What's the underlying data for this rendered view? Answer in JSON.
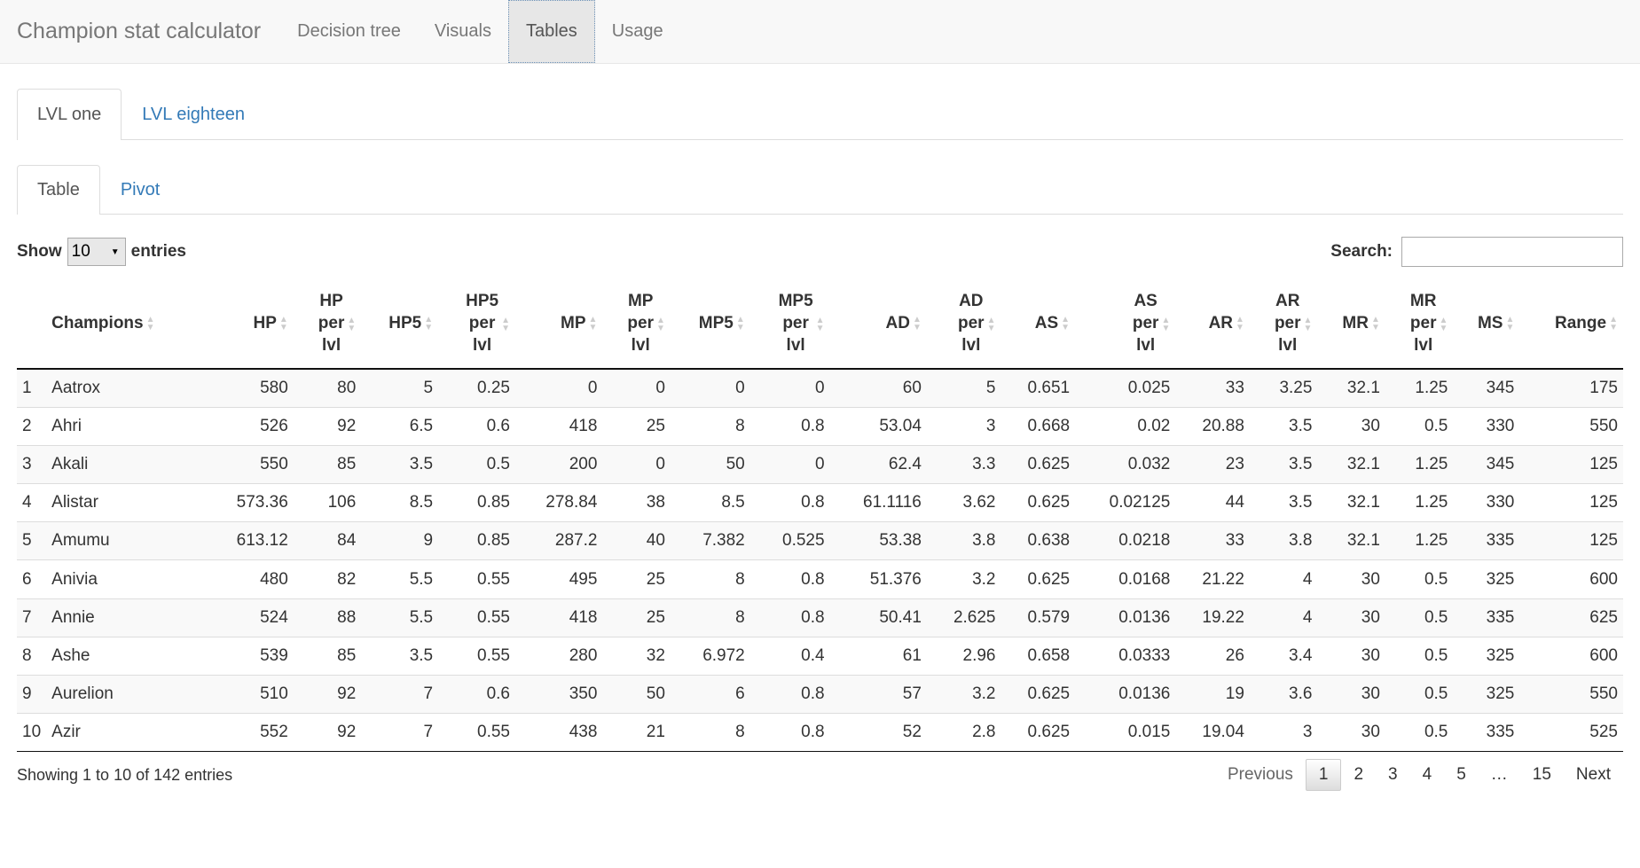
{
  "navbar": {
    "brand": "Champion stat calculator",
    "items": [
      "Decision tree",
      "Visuals",
      "Tables",
      "Usage"
    ],
    "active": "Tables"
  },
  "level_tabs": [
    "LVL one",
    "LVL eighteen"
  ],
  "view_tabs": [
    "Table",
    "Pivot"
  ],
  "controls": {
    "show_label": "Show",
    "entries_value": "10",
    "entries_label": "entries",
    "search_label": "Search:",
    "search_value": ""
  },
  "table": {
    "columns": [
      [
        "Champions"
      ],
      [
        "HP"
      ],
      [
        "HP",
        "per",
        "lvl"
      ],
      [
        "HP5"
      ],
      [
        "HP5",
        "per",
        "lvl"
      ],
      [
        "MP"
      ],
      [
        "MP",
        "per",
        "lvl"
      ],
      [
        "MP5"
      ],
      [
        "MP5",
        "per",
        "lvl"
      ],
      [
        "AD"
      ],
      [
        "AD",
        "per",
        "lvl"
      ],
      [
        "AS"
      ],
      [
        "AS",
        "per",
        "lvl"
      ],
      [
        "AR"
      ],
      [
        "AR",
        "per",
        "lvl"
      ],
      [
        "MR"
      ],
      [
        "MR",
        "per",
        "lvl"
      ],
      [
        "MS"
      ],
      [
        "Range"
      ]
    ],
    "rows": [
      [
        "1",
        "Aatrox",
        "580",
        "80",
        "5",
        "0.25",
        "0",
        "0",
        "0",
        "0",
        "60",
        "5",
        "0.651",
        "0.025",
        "33",
        "3.25",
        "32.1",
        "1.25",
        "345",
        "175"
      ],
      [
        "2",
        "Ahri",
        "526",
        "92",
        "6.5",
        "0.6",
        "418",
        "25",
        "8",
        "0.8",
        "53.04",
        "3",
        "0.668",
        "0.02",
        "20.88",
        "3.5",
        "30",
        "0.5",
        "330",
        "550"
      ],
      [
        "3",
        "Akali",
        "550",
        "85",
        "3.5",
        "0.5",
        "200",
        "0",
        "50",
        "0",
        "62.4",
        "3.3",
        "0.625",
        "0.032",
        "23",
        "3.5",
        "32.1",
        "1.25",
        "345",
        "125"
      ],
      [
        "4",
        "Alistar",
        "573.36",
        "106",
        "8.5",
        "0.85",
        "278.84",
        "38",
        "8.5",
        "0.8",
        "61.1116",
        "3.62",
        "0.625",
        "0.02125",
        "44",
        "3.5",
        "32.1",
        "1.25",
        "330",
        "125"
      ],
      [
        "5",
        "Amumu",
        "613.12",
        "84",
        "9",
        "0.85",
        "287.2",
        "40",
        "7.382",
        "0.525",
        "53.38",
        "3.8",
        "0.638",
        "0.0218",
        "33",
        "3.8",
        "32.1",
        "1.25",
        "335",
        "125"
      ],
      [
        "6",
        "Anivia",
        "480",
        "82",
        "5.5",
        "0.55",
        "495",
        "25",
        "8",
        "0.8",
        "51.376",
        "3.2",
        "0.625",
        "0.0168",
        "21.22",
        "4",
        "30",
        "0.5",
        "325",
        "600"
      ],
      [
        "7",
        "Annie",
        "524",
        "88",
        "5.5",
        "0.55",
        "418",
        "25",
        "8",
        "0.8",
        "50.41",
        "2.625",
        "0.579",
        "0.0136",
        "19.22",
        "4",
        "30",
        "0.5",
        "335",
        "625"
      ],
      [
        "8",
        "Ashe",
        "539",
        "85",
        "3.5",
        "0.55",
        "280",
        "32",
        "6.972",
        "0.4",
        "61",
        "2.96",
        "0.658",
        "0.0333",
        "26",
        "3.4",
        "30",
        "0.5",
        "325",
        "600"
      ],
      [
        "9",
        "Aurelion",
        "510",
        "92",
        "7",
        "0.6",
        "350",
        "50",
        "6",
        "0.8",
        "57",
        "3.2",
        "0.625",
        "0.0136",
        "19",
        "3.6",
        "30",
        "0.5",
        "325",
        "550"
      ],
      [
        "10",
        "Azir",
        "552",
        "92",
        "7",
        "0.55",
        "438",
        "21",
        "8",
        "0.8",
        "52",
        "2.8",
        "0.625",
        "0.015",
        "19.04",
        "3",
        "30",
        "0.5",
        "335",
        "525"
      ]
    ]
  },
  "footer": {
    "info": "Showing 1 to 10 of 142 entries",
    "pagination": [
      "Previous",
      "1",
      "2",
      "3",
      "4",
      "5",
      "…",
      "15",
      "Next"
    ],
    "current_page": "1"
  }
}
